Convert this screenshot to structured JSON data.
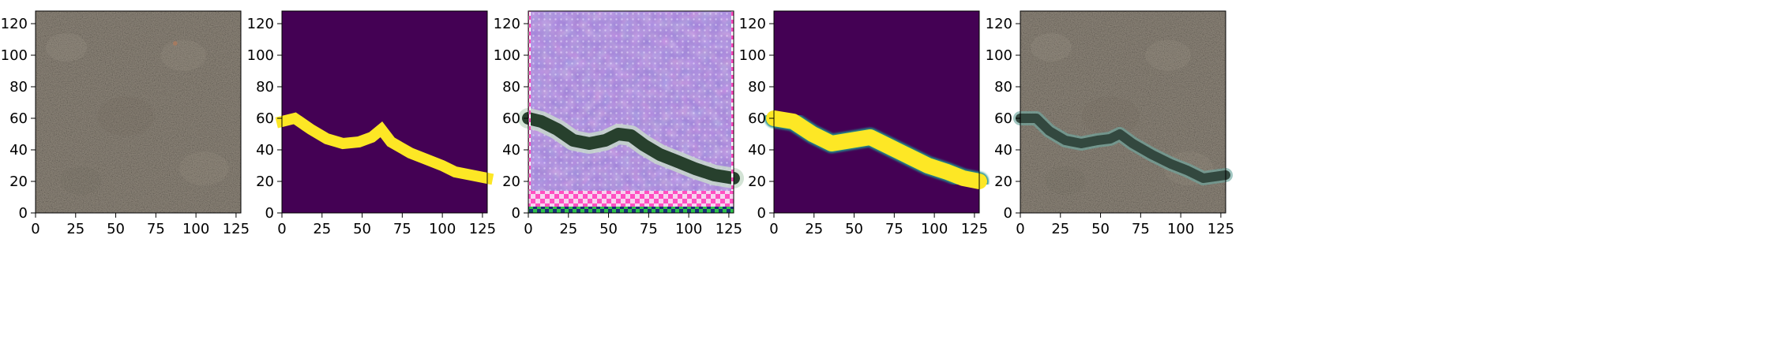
{
  "chart_data": [
    {
      "type": "image",
      "panel": 1,
      "content": "concrete-texture",
      "colors": {
        "base": "#8f877b",
        "light": "#b3ab9f",
        "dark": "#5f584f",
        "accent": "#a87a5e"
      },
      "xlim": [
        0,
        128
      ],
      "ylim": [
        128,
        0
      ],
      "xticks": [
        0,
        25,
        50,
        75,
        100,
        125
      ],
      "yticks": [
        0,
        20,
        40,
        60,
        80,
        100,
        120
      ]
    },
    {
      "type": "image",
      "panel": 2,
      "content": "binary-crack-mask",
      "colors": {
        "background": "#440154",
        "foreground": "#fde725"
      },
      "crack_path": [
        [
          0,
          58
        ],
        [
          8,
          60
        ],
        [
          18,
          53
        ],
        [
          28,
          47
        ],
        [
          38,
          44
        ],
        [
          48,
          45
        ],
        [
          56,
          48
        ],
        [
          62,
          53
        ],
        [
          68,
          45
        ],
        [
          80,
          38
        ],
        [
          90,
          34
        ],
        [
          100,
          30
        ],
        [
          108,
          26
        ],
        [
          118,
          24
        ],
        [
          128,
          22
        ]
      ],
      "crack_width": 7,
      "xlim": [
        0,
        128
      ],
      "ylim": [
        128,
        0
      ],
      "xticks": [
        0,
        25,
        50,
        75,
        100,
        125
      ],
      "yticks": [
        0,
        20,
        40,
        60,
        80,
        100,
        120
      ]
    },
    {
      "type": "image",
      "panel": 3,
      "content": "generated-crack-on-purple",
      "colors": {
        "base": "#9b7fd6",
        "tint": "#c48ad8",
        "light": "#d7c6f0",
        "crack": "#27402d",
        "crack_edge": "#c8dccb",
        "border": "#ff4fc1"
      },
      "crack_path": [
        [
          0,
          60
        ],
        [
          8,
          58
        ],
        [
          18,
          53
        ],
        [
          28,
          46
        ],
        [
          38,
          44
        ],
        [
          48,
          46
        ],
        [
          56,
          50
        ],
        [
          64,
          49
        ],
        [
          72,
          43
        ],
        [
          82,
          37
        ],
        [
          92,
          33
        ],
        [
          104,
          28
        ],
        [
          116,
          24
        ],
        [
          128,
          22
        ]
      ],
      "crack_width": 8,
      "xlim": [
        0,
        128
      ],
      "ylim": [
        128,
        0
      ],
      "xticks": [
        0,
        25,
        50,
        75,
        100,
        125
      ],
      "yticks": [
        0,
        20,
        40,
        60,
        80,
        100,
        120
      ]
    },
    {
      "type": "image",
      "panel": 4,
      "content": "smooth-crack-mask",
      "colors": {
        "background": "#440154",
        "edge": "#21918c",
        "foreground": "#fde725"
      },
      "crack_path": [
        [
          0,
          60
        ],
        [
          12,
          58
        ],
        [
          24,
          50
        ],
        [
          36,
          44
        ],
        [
          48,
          46
        ],
        [
          60,
          48
        ],
        [
          72,
          42
        ],
        [
          84,
          36
        ],
        [
          96,
          30
        ],
        [
          108,
          26
        ],
        [
          118,
          22
        ],
        [
          128,
          20
        ]
      ],
      "crack_width": 10,
      "xlim": [
        0,
        128
      ],
      "ylim": [
        128,
        0
      ],
      "xticks": [
        0,
        25,
        50,
        75,
        100,
        125
      ],
      "yticks": [
        0,
        20,
        40,
        60,
        80,
        100,
        120
      ]
    },
    {
      "type": "image",
      "panel": 5,
      "content": "concrete-with-crack-overlay",
      "colors": {
        "base": "#8f877b",
        "light": "#b3ab9f",
        "dark": "#5f584f",
        "crack": "#33483f",
        "crack_edge": "#6fa8a0"
      },
      "crack_path": [
        [
          0,
          60
        ],
        [
          10,
          60
        ],
        [
          18,
          52
        ],
        [
          28,
          46
        ],
        [
          38,
          44
        ],
        [
          48,
          46
        ],
        [
          56,
          47
        ],
        [
          62,
          50
        ],
        [
          70,
          44
        ],
        [
          82,
          37
        ],
        [
          94,
          31
        ],
        [
          104,
          27
        ],
        [
          114,
          22
        ],
        [
          128,
          24
        ]
      ],
      "crack_width": 6,
      "xlim": [
        0,
        128
      ],
      "ylim": [
        128,
        0
      ],
      "xticks": [
        0,
        25,
        50,
        75,
        100,
        125
      ],
      "yticks": [
        0,
        20,
        40,
        60,
        80,
        100,
        120
      ]
    }
  ]
}
